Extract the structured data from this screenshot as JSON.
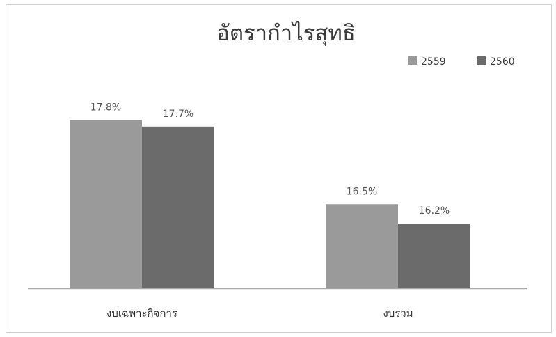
{
  "chart_data": {
    "type": "bar",
    "title": "อัตรากำไรสุทธิ",
    "categories": [
      "งบเฉพาะกิจการ",
      "งบรวม"
    ],
    "series": [
      {
        "name": "2559",
        "values": [
          17.8,
          16.5
        ],
        "labels": [
          "17.8%",
          "16.5%"
        ],
        "color": "#9a9a9a"
      },
      {
        "name": "2560",
        "values": [
          17.7,
          16.2
        ],
        "labels": [
          "17.7%",
          "16.2%"
        ],
        "color": "#6b6b6b"
      }
    ],
    "ylim": [
      15.2,
      18.15
    ],
    "grid": false,
    "legend": "top-right"
  }
}
